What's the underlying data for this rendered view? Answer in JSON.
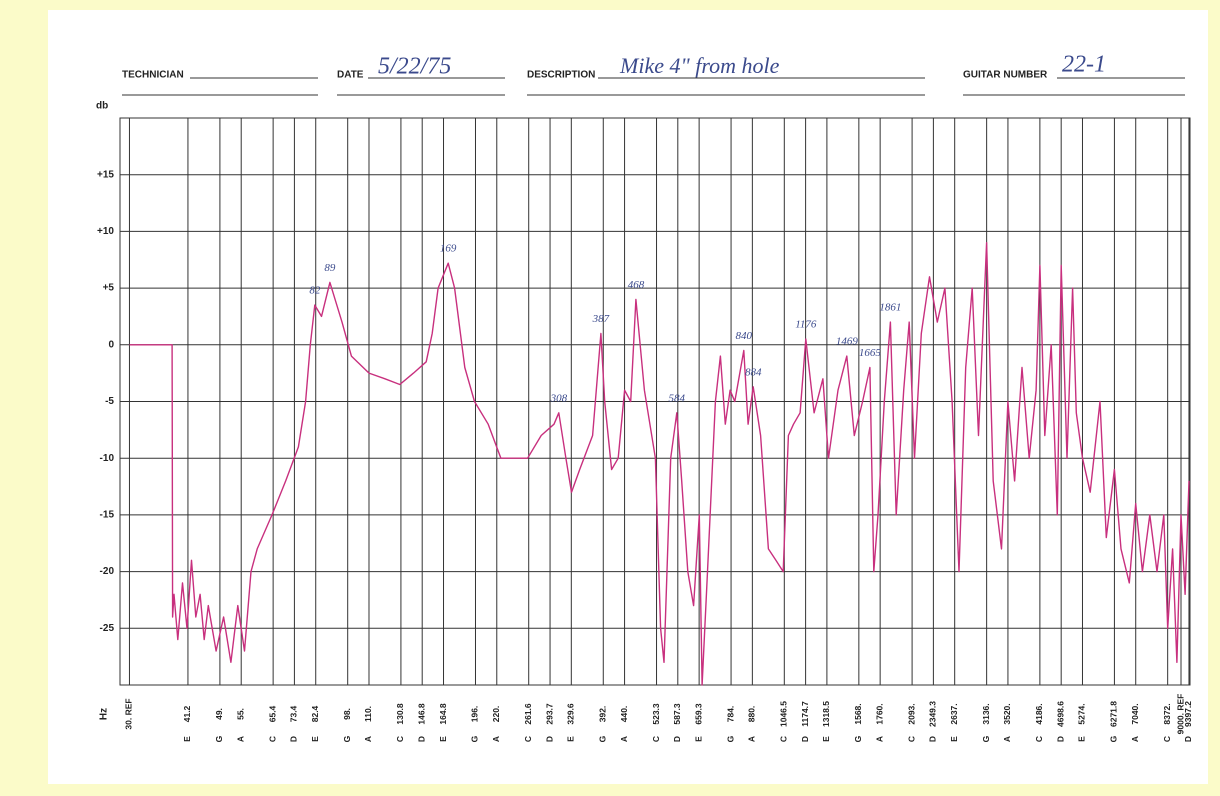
{
  "header": {
    "technician_label": "TECHNICIAN",
    "date_label": "DATE",
    "date": "5/22/75",
    "description_label": "DESCRIPTION",
    "description": "Mike 4\" from hole",
    "guitar_number_label": "GUITAR NUMBER",
    "guitar_number": "22-1"
  },
  "chart_data": {
    "type": "line",
    "ylabel": "db",
    "xlabel": "Hz",
    "color": "#c8307e",
    "xlog": true,
    "grid": true,
    "xlim": [
      28.5,
      9450
    ],
    "ylim": [
      -30,
      20
    ],
    "yticks": [
      -25,
      -20,
      -15,
      -10,
      -5,
      0,
      {
        "value": 5,
        "label": "+5"
      },
      {
        "value": 10,
        "label": "+10"
      },
      {
        "value": 15,
        "label": "+15"
      }
    ],
    "xticks": [
      {
        "value": 30,
        "label": "30. REF"
      },
      41.2,
      {
        "value": 49,
        "label": "49."
      },
      {
        "value": 55,
        "label": "55."
      },
      65.4,
      73.4,
      82.4,
      {
        "value": 98,
        "label": "98."
      },
      {
        "value": 110,
        "label": "110."
      },
      130.8,
      146.8,
      164.8,
      {
        "value": 196,
        "label": "196."
      },
      {
        "value": 220,
        "label": "220."
      },
      261.6,
      293.7,
      329.6,
      {
        "value": 392,
        "label": "392."
      },
      {
        "value": 440,
        "label": "440."
      },
      523.3,
      587.3,
      659.3,
      {
        "value": 784,
        "label": "784."
      },
      {
        "value": 880,
        "label": "880."
      },
      1046.5,
      1174.7,
      1318.5,
      {
        "value": 1568,
        "label": "1568."
      },
      {
        "value": 1760,
        "label": "1760."
      },
      {
        "value": 2093,
        "label": "2093."
      },
      2349.3,
      {
        "value": 2637,
        "label": "2637."
      },
      {
        "value": 3136,
        "label": "3136."
      },
      {
        "value": 3520,
        "label": "3520."
      },
      {
        "value": 4186,
        "label": "4186."
      },
      4698.6,
      {
        "value": 5274,
        "label": "5274."
      },
      6271.8,
      {
        "value": 7040,
        "label": "7040."
      },
      {
        "value": 8372,
        "label": "8372."
      },
      {
        "value": 9000,
        "label": "9000. REF"
      },
      9397.2
    ],
    "xtick_notes": [
      null,
      "E",
      "G",
      "A",
      "C",
      "D",
      "E",
      "G",
      "A",
      "C",
      "D",
      "E",
      "G",
      "A",
      "C",
      "D",
      "E",
      "G",
      "A",
      "C",
      "D",
      "E",
      "G",
      "A",
      "C",
      "D",
      "E",
      "G",
      "A",
      "C",
      "D",
      "E",
      "G",
      "A",
      "C",
      "D",
      "E",
      "G",
      "A",
      "C",
      null,
      "D"
    ],
    "x": [
      30,
      37.8,
      37.9,
      38.2,
      39,
      40,
      41,
      42,
      43,
      44,
      45,
      46,
      48,
      50,
      52,
      54,
      56,
      58,
      60,
      65,
      70,
      75,
      78,
      80,
      82,
      85,
      89,
      95,
      100,
      110,
      120,
      130,
      140,
      150,
      155,
      160,
      169,
      175,
      185,
      195,
      210,
      225,
      240,
      260,
      280,
      300,
      308,
      320,
      330,
      345,
      370,
      387,
      395,
      410,
      425,
      440,
      455,
      468,
      490,
      520,
      535,
      545,
      565,
      584,
      600,
      620,
      640,
      660,
      670,
      690,
      720,
      740,
      760,
      780,
      800,
      840,
      860,
      884,
      920,
      960,
      1000,
      1040,
      1070,
      1100,
      1140,
      1176,
      1230,
      1290,
      1330,
      1400,
      1469,
      1530,
      1600,
      1665,
      1700,
      1740,
      1800,
      1861,
      1920,
      2000,
      2060,
      2120,
      2200,
      2300,
      2400,
      2500,
      2600,
      2700,
      2800,
      2900,
      3000,
      3136,
      3250,
      3400,
      3520,
      3650,
      3800,
      3950,
      4100,
      4186,
      4300,
      4450,
      4600,
      4698,
      4850,
      5000,
      5100,
      5274,
      5500,
      5800,
      6000,
      6271,
      6500,
      6800,
      7040,
      7300,
      7600,
      7900,
      8200,
      8372,
      8600,
      8800,
      9000,
      9200,
      9397
    ],
    "values": [
      0,
      0,
      -24,
      -22,
      -26,
      -21,
      -25,
      -19,
      -24,
      -22,
      -26,
      -23,
      -27,
      -24,
      -28,
      -23,
      -27,
      -20,
      -18,
      -15,
      -12,
      -9,
      -5,
      0,
      3.5,
      2.5,
      5.5,
      2,
      -1,
      -2.5,
      -3,
      -3.5,
      -2.5,
      -1.5,
      1,
      5,
      7.2,
      5,
      -2,
      -5,
      -7,
      -10,
      -10,
      -10,
      -8,
      -7,
      -6,
      -10,
      -13,
      -11,
      -8,
      1,
      -5,
      -11,
      -10,
      -4,
      -5,
      4,
      -4,
      -10,
      -25,
      -28,
      -10,
      -6,
      -12,
      -20,
      -23,
      -15,
      -30,
      -20,
      -5,
      -1,
      -7,
      -4,
      -5,
      -0.5,
      -7,
      -3.7,
      -8,
      -18,
      -19,
      -20,
      -8,
      -7,
      -6,
      0.5,
      -6,
      -3,
      -10,
      -4,
      -1,
      -8,
      -5,
      -2,
      -20,
      -15,
      -5,
      2,
      -15,
      -4,
      2,
      -10,
      1,
      6,
      2,
      5,
      -5,
      -20,
      -2,
      5,
      -8,
      9,
      -12,
      -18,
      -5,
      -12,
      -2,
      -10,
      -4,
      7,
      -8,
      0,
      -15,
      7,
      -10,
      5,
      -6,
      -10,
      -13,
      -5,
      -17,
      -11,
      -18,
      -21,
      -14,
      -20,
      -15,
      -20,
      -15,
      -25,
      -18,
      -28,
      -15,
      -22,
      -12
    ],
    "annotations": [
      {
        "text": "82",
        "x": 82,
        "y": 3.5
      },
      {
        "text": "89",
        "x": 89,
        "y": 5.5
      },
      {
        "text": "169",
        "x": 169,
        "y": 7.2
      },
      {
        "text": "308",
        "x": 308,
        "y": -6
      },
      {
        "text": "387",
        "x": 387,
        "y": 1
      },
      {
        "text": "468",
        "x": 468,
        "y": 4
      },
      {
        "text": "584",
        "x": 584,
        "y": -6
      },
      {
        "text": "840",
        "x": 840,
        "y": -0.5
      },
      {
        "text": "884",
        "x": 884,
        "y": -3.7
      },
      {
        "text": "1176",
        "x": 1176,
        "y": 0.5
      },
      {
        "text": "1469",
        "x": 1469,
        "y": -1
      },
      {
        "text": "1665",
        "x": 1665,
        "y": -2
      },
      {
        "text": "1861",
        "x": 1861,
        "y": 2
      }
    ]
  }
}
